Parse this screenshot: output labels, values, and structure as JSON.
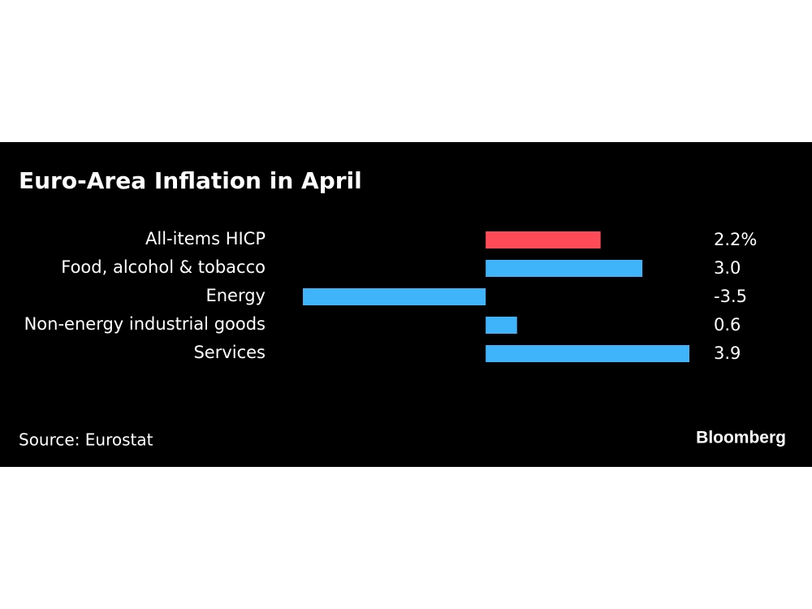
{
  "chart_data": {
    "type": "bar",
    "orientation": "horizontal",
    "title": "Euro-Area Inflation in April",
    "categories": [
      "All-items HICP",
      "Food, alcohol & tobacco",
      "Energy",
      "Non-energy industrial goods",
      "Services"
    ],
    "values": [
      2.2,
      3.0,
      -3.5,
      0.6,
      3.9
    ],
    "value_labels": [
      "2.2%",
      "3.0",
      "-3.5",
      "0.6",
      "3.9"
    ],
    "colors": [
      "#ff4a57",
      "#3fb4fb",
      "#3fb4fb",
      "#3fb4fb",
      "#3fb4fb"
    ],
    "source": "Source: Eurostat",
    "brand": "Bloomberg"
  }
}
